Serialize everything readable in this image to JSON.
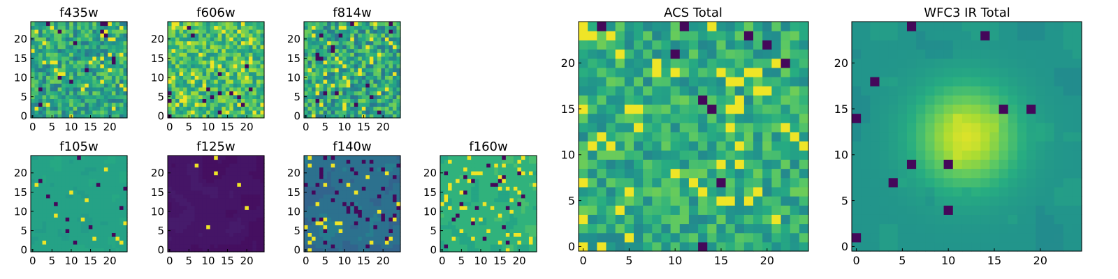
{
  "chart_data": [
    {
      "type": "heatmap",
      "title": "f435w",
      "size": 25,
      "xticks": [
        0,
        5,
        10,
        15,
        20
      ],
      "yticks": [
        0,
        5,
        10,
        15,
        20
      ],
      "seed": 11,
      "style": "noise",
      "mean": 0.6,
      "spread": 0.2,
      "dark": 0.03,
      "bright": 0.05
    },
    {
      "type": "heatmap",
      "title": "f606w",
      "size": 25,
      "xticks": [
        0,
        5,
        10,
        15,
        20
      ],
      "yticks": [
        0,
        5,
        10,
        15,
        20
      ],
      "seed": 23,
      "style": "noise",
      "mean": 0.7,
      "spread": 0.2,
      "dark": 0.02,
      "bright": 0.08
    },
    {
      "type": "heatmap",
      "title": "f814w",
      "size": 25,
      "xticks": [
        0,
        5,
        10,
        15,
        20
      ],
      "yticks": [
        0,
        5,
        10,
        15,
        20
      ],
      "seed": 37,
      "style": "noise",
      "mean": 0.6,
      "spread": 0.22,
      "dark": 0.03,
      "bright": 0.07
    },
    {
      "type": "heatmap",
      "title": "f105w",
      "size": 25,
      "xticks": [
        0,
        5,
        10,
        15,
        20
      ],
      "yticks": [
        0,
        5,
        10,
        15,
        20
      ],
      "seed": 41,
      "style": "patchy",
      "mean": 0.58,
      "spread": 0.08,
      "dark": 0.015,
      "bright": 0.015
    },
    {
      "type": "heatmap",
      "title": "f125w",
      "size": 25,
      "xticks": [
        0,
        5,
        10,
        15,
        20
      ],
      "yticks": [
        0,
        5,
        10,
        15,
        20
      ],
      "seed": 53,
      "style": "patchy",
      "mean": 0.06,
      "spread": 0.05,
      "dark": 0.0,
      "bright": 0.012
    },
    {
      "type": "heatmap",
      "title": "f140w",
      "size": 25,
      "xticks": [
        0,
        5,
        10,
        15,
        20
      ],
      "yticks": [
        0,
        5,
        10,
        15,
        20
      ],
      "seed": 67,
      "style": "patchy",
      "mean": 0.38,
      "spread": 0.14,
      "dark": 0.06,
      "bright": 0.04
    },
    {
      "type": "heatmap",
      "title": "f160w",
      "size": 25,
      "xticks": [
        0,
        5,
        10,
        15,
        20
      ],
      "yticks": [
        0,
        5,
        10,
        15,
        20
      ],
      "seed": 79,
      "style": "patchy",
      "mean": 0.65,
      "spread": 0.15,
      "dark": 0.05,
      "bright": 0.06
    },
    {
      "type": "heatmap",
      "title": "ACS Total",
      "size": 25,
      "xticks": [
        0,
        5,
        10,
        15,
        20
      ],
      "yticks": [
        0,
        5,
        10,
        15,
        20
      ],
      "seed": 97,
      "style": "noise",
      "mean": 0.62,
      "spread": 0.16,
      "dark": 0.02,
      "bright": 0.07
    },
    {
      "type": "heatmap",
      "title": "WFC3 IR Total",
      "size": 25,
      "xticks": [
        0,
        5,
        10,
        15,
        20
      ],
      "yticks": [
        0,
        5,
        10,
        15,
        20
      ],
      "seed": 113,
      "style": "blob",
      "mean": 0.52,
      "spread": 0.1,
      "dark": 0.02,
      "bright": 0.0,
      "peak": 0.95,
      "center": [
        12,
        12
      ],
      "sigma": 3.8
    }
  ],
  "colormap": "viridis"
}
